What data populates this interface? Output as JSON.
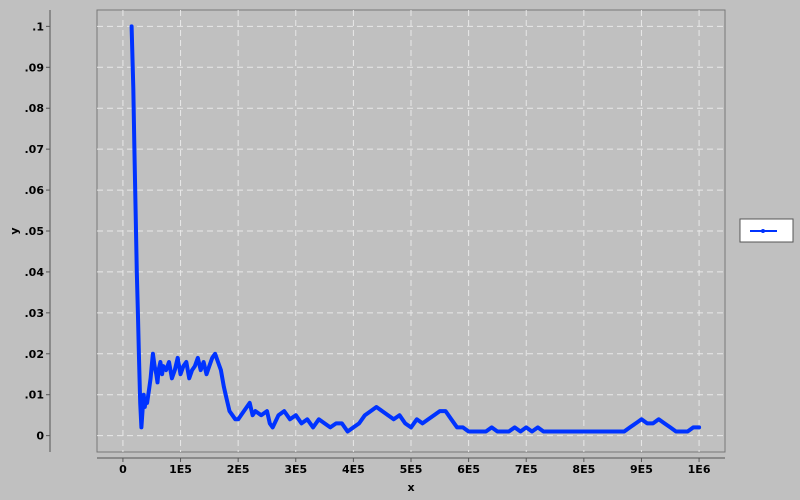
{
  "chart_data": {
    "type": "line",
    "title": "",
    "xlabel": "x",
    "ylabel": "y",
    "xlim": [
      -45000,
      1045000
    ],
    "ylim": [
      -0.004,
      0.104
    ],
    "x_ticks": [
      0,
      100000,
      200000,
      300000,
      400000,
      500000,
      600000,
      700000,
      800000,
      900000,
      1000000
    ],
    "x_tick_labels": [
      "0",
      "1E5",
      "2E5",
      "3E5",
      "4E5",
      "5E5",
      "6E5",
      "7E5",
      "8E5",
      "9E5",
      "1E6"
    ],
    "y_ticks": [
      0,
      0.01,
      0.02,
      0.03,
      0.04,
      0.05,
      0.06,
      0.07,
      0.08,
      0.09,
      0.1
    ],
    "y_tick_labels": [
      "0",
      ".01",
      ".02",
      ".03",
      ".04",
      ".05",
      ".06",
      ".07",
      ".08",
      ".09",
      ".1"
    ],
    "grid": true,
    "legend": {
      "position": "right",
      "color": "#0033ff"
    },
    "colors": {
      "series": "#0033ff",
      "plot_bg": "#c0c0c0",
      "grid": "#e8e8e8",
      "axis": "#555555"
    },
    "series": [
      {
        "x": [
          15000,
          18000,
          20000,
          22000,
          24000,
          26000,
          28000,
          30000,
          32000,
          34000,
          36000,
          38000,
          40000,
          42000,
          45000,
          48000,
          50000,
          52000,
          55000,
          58000,
          60000,
          62000,
          65000,
          68000,
          70000,
          75000,
          80000,
          85000,
          90000,
          95000,
          100000,
          105000,
          110000,
          115000,
          120000,
          125000,
          130000,
          135000,
          140000,
          145000,
          150000,
          155000,
          160000,
          165000,
          170000,
          175000,
          180000,
          185000,
          190000,
          195000,
          200000,
          210000,
          220000,
          225000,
          230000,
          240000,
          250000,
          255000,
          260000,
          270000,
          280000,
          290000,
          300000,
          310000,
          320000,
          330000,
          340000,
          350000,
          360000,
          370000,
          380000,
          390000,
          400000,
          410000,
          420000,
          430000,
          440000,
          450000,
          460000,
          470000,
          480000,
          490000,
          500000,
          510000,
          520000,
          530000,
          540000,
          550000,
          560000,
          570000,
          580000,
          590000,
          600000,
          610000,
          620000,
          630000,
          640000,
          650000,
          660000,
          670000,
          680000,
          690000,
          700000,
          710000,
          720000,
          730000,
          740000,
          750000,
          760000,
          770000,
          780000,
          790000,
          800000,
          810000,
          820000,
          830000,
          840000,
          850000,
          860000,
          870000,
          880000,
          890000,
          900000,
          910000,
          920000,
          930000,
          940000,
          950000,
          960000,
          970000,
          980000,
          990000,
          1000000
        ],
        "values": [
          0.1,
          0.085,
          0.07,
          0.055,
          0.04,
          0.03,
          0.018,
          0.008,
          0.002,
          0.006,
          0.01,
          0.007,
          0.009,
          0.008,
          0.011,
          0.014,
          0.017,
          0.02,
          0.017,
          0.015,
          0.013,
          0.016,
          0.018,
          0.015,
          0.017,
          0.016,
          0.018,
          0.014,
          0.016,
          0.019,
          0.015,
          0.017,
          0.018,
          0.014,
          0.016,
          0.017,
          0.019,
          0.016,
          0.018,
          0.015,
          0.017,
          0.019,
          0.02,
          0.018,
          0.016,
          0.012,
          0.009,
          0.006,
          0.005,
          0.004,
          0.004,
          0.006,
          0.008,
          0.005,
          0.006,
          0.005,
          0.006,
          0.003,
          0.002,
          0.005,
          0.006,
          0.004,
          0.005,
          0.003,
          0.004,
          0.002,
          0.004,
          0.003,
          0.002,
          0.003,
          0.003,
          0.001,
          0.002,
          0.003,
          0.005,
          0.006,
          0.007,
          0.006,
          0.005,
          0.004,
          0.005,
          0.003,
          0.002,
          0.004,
          0.003,
          0.004,
          0.005,
          0.006,
          0.006,
          0.004,
          0.002,
          0.002,
          0.001,
          0.001,
          0.001,
          0.001,
          0.002,
          0.001,
          0.001,
          0.001,
          0.002,
          0.001,
          0.002,
          0.001,
          0.002,
          0.001,
          0.001,
          0.001,
          0.001,
          0.001,
          0.001,
          0.001,
          0.001,
          0.001,
          0.001,
          0.001,
          0.001,
          0.001,
          0.001,
          0.001,
          0.002,
          0.003,
          0.004,
          0.003,
          0.003,
          0.004,
          0.003,
          0.002,
          0.001,
          0.001,
          0.001,
          0.002,
          0.002
        ]
      }
    ]
  }
}
